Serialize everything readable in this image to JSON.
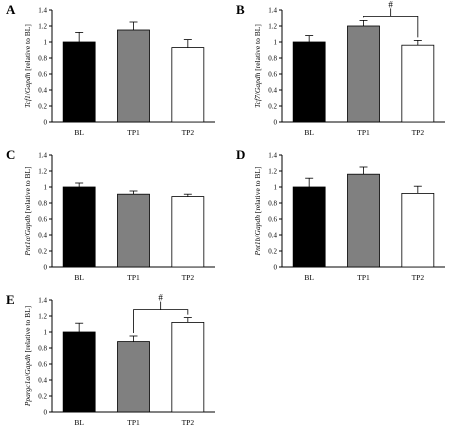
{
  "chart_data": [
    {
      "panel_letter": "A",
      "type": "bar",
      "categories": [
        "BL",
        "TP1",
        "TP2"
      ],
      "values": [
        1.0,
        1.15,
        0.93
      ],
      "errors": [
        0.12,
        0.1,
        0.1
      ],
      "colors": [
        "#000000",
        "#808080",
        "#ffffff"
      ],
      "ylabel_gene": "Tcf1",
      "ylabel_ref": "Gapdh",
      "ylabel_suffix": "[relative to BL]",
      "ylim": [
        0,
        1.4
      ],
      "yticks": [
        "0",
        "0.2",
        "0.4",
        "0.6",
        "0.8",
        "1",
        "1.2",
        "1.4"
      ],
      "significance": null
    },
    {
      "panel_letter": "B",
      "type": "bar",
      "categories": [
        "BL",
        "TP1",
        "TP2"
      ],
      "values": [
        1.0,
        1.2,
        0.96
      ],
      "errors": [
        0.08,
        0.07,
        0.06
      ],
      "colors": [
        "#000000",
        "#808080",
        "#ffffff"
      ],
      "ylabel_gene": "Tcf7",
      "ylabel_ref": "Gapdh",
      "ylabel_suffix": "[relative to BL]",
      "ylim": [
        0,
        1.4
      ],
      "yticks": [
        "0",
        "0.2",
        "0.4",
        "0.6",
        "0.8",
        "1",
        "1.2",
        "1.4"
      ],
      "significance": {
        "from": 1,
        "to": 2,
        "level": 1.32,
        "label": "#"
      }
    },
    {
      "panel_letter": "C",
      "type": "bar",
      "categories": [
        "BL",
        "TP1",
        "TP2"
      ],
      "values": [
        1.0,
        0.91,
        0.88
      ],
      "errors": [
        0.05,
        0.04,
        0.03
      ],
      "colors": [
        "#000000",
        "#808080",
        "#ffffff"
      ],
      "ylabel_gene": "Pnt1α",
      "ylabel_ref": "Gapdh",
      "ylabel_suffix": "[relative to BL]",
      "ylim": [
        0,
        1.4
      ],
      "yticks": [
        "0",
        "0.2",
        "0.4",
        "0.6",
        "0.8",
        "1",
        "1.2",
        "1.4"
      ],
      "significance": null
    },
    {
      "panel_letter": "D",
      "type": "bar",
      "categories": [
        "BL",
        "TP1",
        "TP2"
      ],
      "values": [
        1.0,
        1.16,
        0.92
      ],
      "errors": [
        0.11,
        0.09,
        0.09
      ],
      "colors": [
        "#000000",
        "#808080",
        "#ffffff"
      ],
      "ylabel_gene": "Pnt1b",
      "ylabel_ref": "Gapdh",
      "ylabel_suffix": "[relative to BL]",
      "ylim": [
        0,
        1.4
      ],
      "yticks": [
        "0",
        "0.2",
        "0.4",
        "0.6",
        "0.8",
        "1",
        "1.2",
        "1.4"
      ],
      "significance": null
    },
    {
      "panel_letter": "E",
      "type": "bar",
      "categories": [
        "BL",
        "TP1",
        "TP2"
      ],
      "values": [
        1.0,
        0.88,
        1.12
      ],
      "errors": [
        0.11,
        0.07,
        0.06
      ],
      "colors": [
        "#000000",
        "#808080",
        "#ffffff"
      ],
      "ylabel_gene": "Ppargc1a",
      "ylabel_ref": "Gapdh",
      "ylabel_suffix": "[relative to BL]",
      "ylim": [
        0,
        1.4
      ],
      "yticks": [
        "0",
        "0.2",
        "0.4",
        "0.6",
        "0.8",
        "1",
        "1.2",
        "1.4"
      ],
      "significance": {
        "from": 1,
        "to": 2,
        "level": 1.28,
        "label": "#"
      }
    }
  ]
}
